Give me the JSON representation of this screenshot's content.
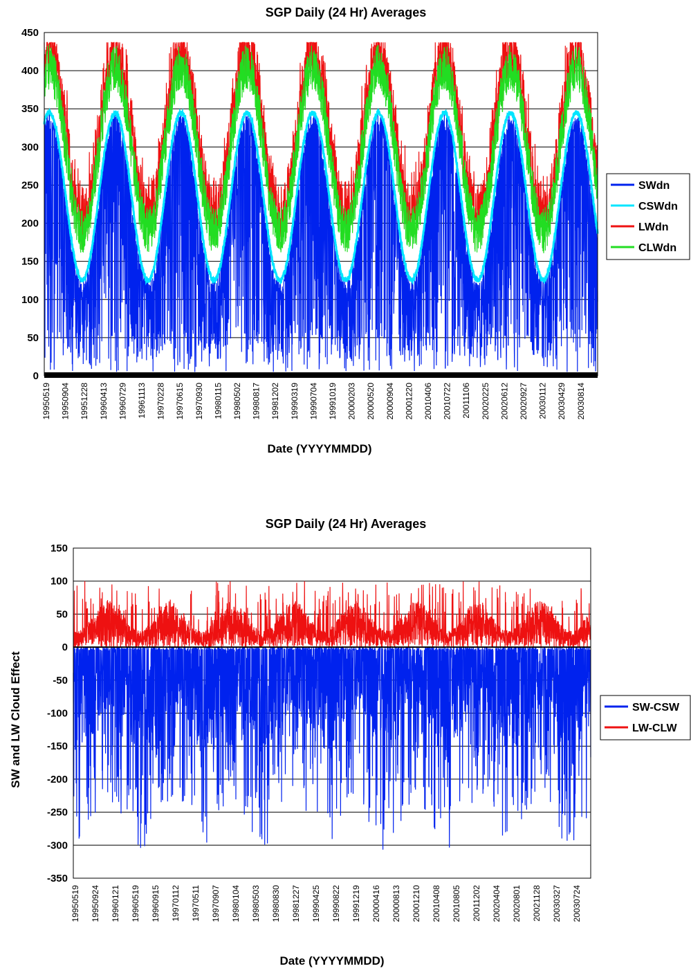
{
  "chart_data": [
    {
      "type": "line",
      "title": "SGP Daily (24 Hr) Averages",
      "xlabel": "Date (YYYYMMDD)",
      "ylabel": "",
      "ylim": [
        0,
        450
      ],
      "yticks": [
        0,
        50,
        100,
        150,
        200,
        250,
        300,
        350,
        400,
        450
      ],
      "xlim": [
        "1995-05-19",
        "2003-10-12"
      ],
      "xtick_labels": [
        "19950519",
        "19950904",
        "19951228",
        "19960413",
        "19960729",
        "19961113",
        "19970228",
        "19970615",
        "19970930",
        "19980115",
        "19980502",
        "19980817",
        "19981202",
        "19990319",
        "19990704",
        "19991019",
        "20000203",
        "20000520",
        "20000904",
        "20001220",
        "20010406",
        "20010722",
        "20011106",
        "20020225",
        "20020612",
        "20020927",
        "20030112",
        "20030429",
        "20030814"
      ],
      "grid": true,
      "legend_position": "right",
      "series": [
        {
          "name": "SWdn",
          "color": "#0022ee",
          "summer_peak": 340,
          "winter_trough": 125,
          "dip_min": 5
        },
        {
          "name": "CSWdn",
          "color": "#00e5ff",
          "summer_peak": 345,
          "winter_trough": 125
        },
        {
          "name": "LWdn",
          "color": "#ee1111",
          "summer_peak": 425,
          "winter_trough": 230
        },
        {
          "name": "CLWdn",
          "color": "#22dd22",
          "summer_peak": 405,
          "winter_trough": 190
        }
      ]
    },
    {
      "type": "line",
      "title": "SGP Daily (24 Hr) Averages",
      "xlabel": "Date (YYYYMMDD)",
      "ylabel": "SW and LW Cloud Effect",
      "ylim": [
        -350,
        150
      ],
      "yticks": [
        -350,
        -300,
        -250,
        -200,
        -150,
        -100,
        -50,
        0,
        50,
        100,
        150
      ],
      "xlim": [
        "1995-05-19",
        "2003-10-12"
      ],
      "xtick_labels": [
        "19950519",
        "19950924",
        "19960121",
        "19960519",
        "19960915",
        "19970112",
        "19970511",
        "19970907",
        "19980104",
        "19980503",
        "19980830",
        "19981227",
        "19990425",
        "19990822",
        "19991219",
        "20000416",
        "20000813",
        "20001210",
        "20010408",
        "20010805",
        "20011202",
        "20020404",
        "20020801",
        "20021128",
        "20030327",
        "20030724"
      ],
      "grid": true,
      "legend_position": "right",
      "series": [
        {
          "name": "SW-CSW",
          "color": "#0022ee",
          "range": [
            -315,
            5
          ]
        },
        {
          "name": "LW-CLW",
          "color": "#ee1111",
          "range": [
            0,
            105
          ]
        }
      ]
    }
  ]
}
